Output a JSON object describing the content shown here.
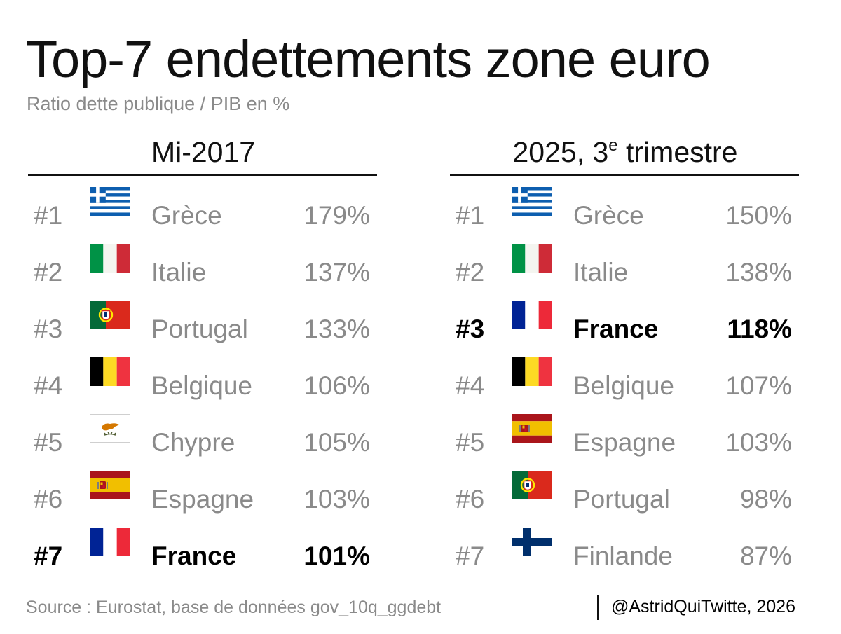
{
  "chart_data": {
    "type": "table",
    "title": "Top-7 endettements zone euro",
    "subtitle": "Ratio dette publique / PIB en %",
    "unit": "%",
    "highlight_country": "France",
    "tables": [
      {
        "period": "Mi-2017",
        "period_suffix": "",
        "rows": [
          {
            "rank": "#1",
            "flag": "greece-flag-icon",
            "country": "Grèce",
            "value": 179
          },
          {
            "rank": "#2",
            "flag": "italy-flag-icon",
            "country": "Italie",
            "value": 137
          },
          {
            "rank": "#3",
            "flag": "portugal-flag-icon",
            "country": "Portugal",
            "value": 133
          },
          {
            "rank": "#4",
            "flag": "belgium-flag-icon",
            "country": "Belgique",
            "value": 106
          },
          {
            "rank": "#5",
            "flag": "cyprus-flag-icon",
            "country": "Chypre",
            "value": 105
          },
          {
            "rank": "#6",
            "flag": "spain-flag-icon",
            "country": "Espagne",
            "value": 103
          },
          {
            "rank": "#7",
            "flag": "france-flag-icon",
            "country": "France",
            "value": 101
          }
        ]
      },
      {
        "period": "2025, 3",
        "period_sup": "e",
        "period_suffix": " trimestre",
        "rows": [
          {
            "rank": "#1",
            "flag": "greece-flag-icon",
            "country": "Grèce",
            "value": 150
          },
          {
            "rank": "#2",
            "flag": "italy-flag-icon",
            "country": "Italie",
            "value": 138
          },
          {
            "rank": "#3",
            "flag": "france-flag-icon",
            "country": "France",
            "value": 118
          },
          {
            "rank": "#4",
            "flag": "belgium-flag-icon",
            "country": "Belgique",
            "value": 107
          },
          {
            "rank": "#5",
            "flag": "spain-flag-icon",
            "country": "Espagne",
            "value": 103
          },
          {
            "rank": "#6",
            "flag": "portugal-flag-icon",
            "country": "Portugal",
            "value": 98
          },
          {
            "rank": "#7",
            "flag": "finland-flag-icon",
            "country": "Finlande",
            "value": 87
          }
        ]
      }
    ]
  },
  "footer": {
    "source": "Source : Eurostat, base de données gov_10q_ggdebt",
    "credit": "@AstridQuiTwitte, 2026"
  },
  "colors": {
    "text_main": "#111111",
    "text_muted": "#8a8a8a",
    "highlight": "#000000"
  }
}
